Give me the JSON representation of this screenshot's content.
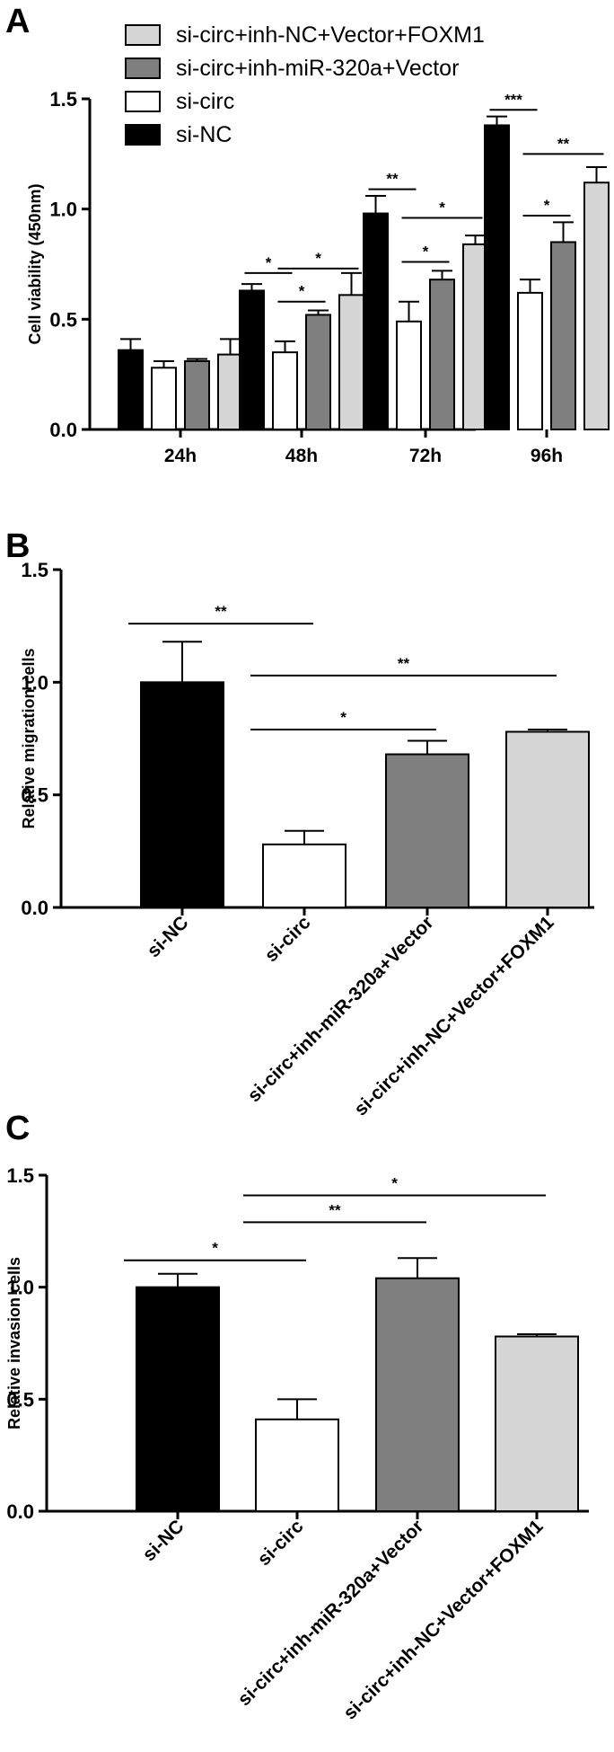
{
  "panels": {
    "A": {
      "label": "A"
    },
    "B": {
      "label": "B"
    },
    "C": {
      "label": "C"
    }
  },
  "colors": {
    "si-NC": "#000000",
    "si-circ": "#ffffff",
    "si-circ+inh-miR-320a+Vector": "#7f7f7f",
    "si-circ+inh-NC+Vector+FOXM1": "#d6d6d6"
  },
  "chart_data": [
    {
      "panel": "A",
      "type": "bar",
      "ylabel": "Cell viability (450nm)",
      "ylim": [
        0,
        1.5
      ],
      "yticks": [
        "0.0",
        "0.5",
        "1.0",
        "1.5"
      ],
      "categories": [
        "24h",
        "48h",
        "72h",
        "96h"
      ],
      "legend": [
        "si-circ+inh-NC+Vector+FOXM1",
        "si-circ+inh-miR-320a+Vector",
        "si-circ",
        "si-NC"
      ],
      "series": [
        {
          "name": "si-NC",
          "values": [
            0.36,
            0.63,
            0.98,
            1.38
          ],
          "errors": [
            0.05,
            0.03,
            0.08,
            0.04
          ]
        },
        {
          "name": "si-circ",
          "values": [
            0.28,
            0.35,
            0.49,
            0.62
          ],
          "errors": [
            0.03,
            0.05,
            0.09,
            0.06
          ]
        },
        {
          "name": "si-circ+inh-miR-320a+Vector",
          "values": [
            0.31,
            0.52,
            0.68,
            0.85
          ],
          "errors": [
            0.01,
            0.02,
            0.04,
            0.09
          ]
        },
        {
          "name": "si-circ+inh-NC+Vector+FOXM1",
          "values": [
            0.34,
            0.61,
            0.84,
            1.12
          ],
          "errors": [
            0.07,
            0.1,
            0.04,
            0.07
          ]
        }
      ],
      "annotations": [
        {
          "group": 1,
          "from": 0,
          "to": 1,
          "y": 0.71,
          "text": "*"
        },
        {
          "group": 1,
          "from": 1,
          "to": 2,
          "y": 0.58,
          "text": "*"
        },
        {
          "group": 1,
          "from": 1,
          "to": 3,
          "y": 0.73,
          "text": "*"
        },
        {
          "group": 2,
          "from": 0,
          "to": 1,
          "y": 1.09,
          "text": "**"
        },
        {
          "group": 2,
          "from": 1,
          "to": 2,
          "y": 0.76,
          "text": "*"
        },
        {
          "group": 2,
          "from": 1,
          "to": 3,
          "y": 0.96,
          "text": "*"
        },
        {
          "group": 3,
          "from": 0,
          "to": 1,
          "y": 1.45,
          "text": "***"
        },
        {
          "group": 3,
          "from": 1,
          "to": 2,
          "y": 0.97,
          "text": "*"
        },
        {
          "group": 3,
          "from": 1,
          "to": 3,
          "y": 1.25,
          "text": "**"
        }
      ]
    },
    {
      "panel": "B",
      "type": "bar",
      "ylabel": "Relative migration cells",
      "ylim": [
        0,
        1.5
      ],
      "yticks": [
        "0.0",
        "0.5",
        "1.0",
        "1.5"
      ],
      "categories": [
        "si-NC",
        "si-circ",
        "si-circ+inh-miR-320a+Vector",
        "si-circ+inh-NC+Vector+FOXM1"
      ],
      "values": [
        1.0,
        0.28,
        0.68,
        0.78
      ],
      "errors": [
        0.18,
        0.06,
        0.06,
        0.01
      ],
      "annotations": [
        {
          "from": 0,
          "to": 1,
          "y": 1.26,
          "text": "**"
        },
        {
          "from": 1,
          "to": 3,
          "y": 1.03,
          "text": "**"
        },
        {
          "from": 1,
          "to": 2,
          "y": 0.79,
          "text": "*"
        }
      ]
    },
    {
      "panel": "C",
      "type": "bar",
      "ylabel": "Relative invasion cells",
      "ylim": [
        0,
        1.5
      ],
      "yticks": [
        "0.0",
        "0.5",
        "1.0",
        "1.5"
      ],
      "categories": [
        "si-NC",
        "si-circ",
        "si-circ+inh-miR-320a+Vector",
        "si-circ+inh-NC+Vector+FOXM1"
      ],
      "values": [
        1.0,
        0.41,
        1.04,
        0.78
      ],
      "errors": [
        0.06,
        0.09,
        0.09,
        0.01
      ],
      "annotations": [
        {
          "from": 0,
          "to": 1,
          "y": 1.12,
          "text": "*"
        },
        {
          "from": 1,
          "to": 2,
          "y": 1.29,
          "text": "**"
        },
        {
          "from": 1,
          "to": 3,
          "y": 1.41,
          "text": "*"
        }
      ]
    }
  ]
}
